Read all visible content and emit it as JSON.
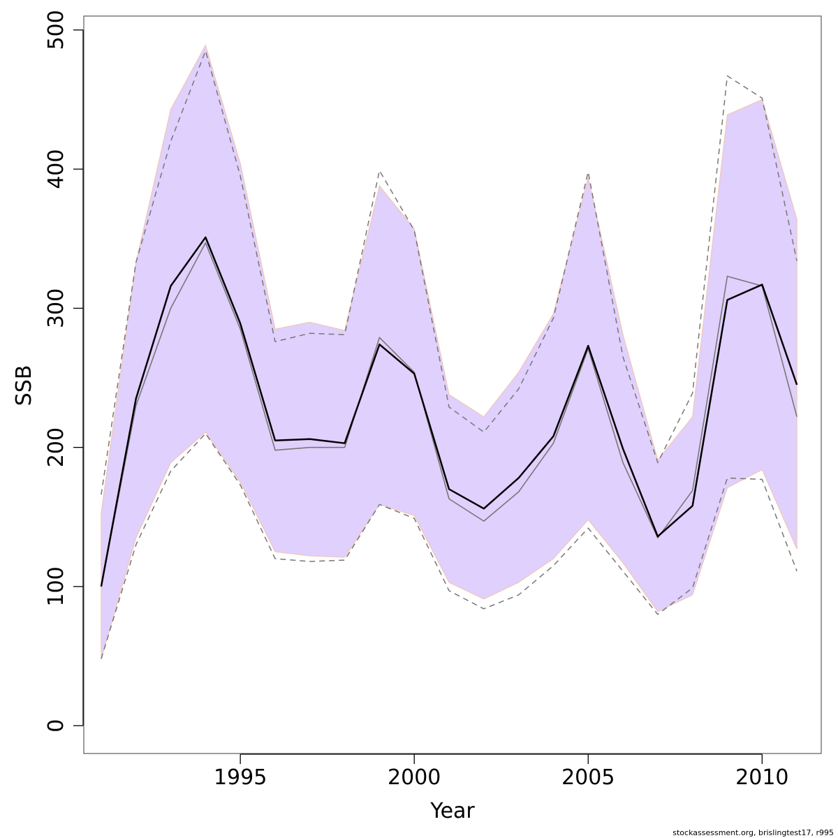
{
  "chart_data": {
    "type": "line",
    "title": "",
    "xlabel": "Year",
    "ylabel": "SSB",
    "xlim": [
      1990.5,
      2011.7
    ],
    "ylim": [
      -20,
      510
    ],
    "x_ticks": [
      1995,
      2000,
      2005,
      2010
    ],
    "y_ticks": [
      0,
      100,
      200,
      300,
      400,
      500
    ],
    "grid": false,
    "legend": "none",
    "colors": {
      "band": "#e0d0fd",
      "band_edge": "#f2c6b4",
      "main": "#000000",
      "secondary": "#777777",
      "dashed": "#777777"
    },
    "x": [
      1991,
      1992,
      1993,
      1994,
      1995,
      1996,
      1997,
      1998,
      1999,
      2000,
      2001,
      2002,
      2003,
      2004,
      2005,
      2006,
      2007,
      2008,
      2009,
      2010,
      2011
    ],
    "band_upper": [
      153,
      333,
      443,
      489,
      404,
      285,
      290,
      284,
      388,
      357,
      238,
      222,
      254,
      296,
      394,
      281,
      191,
      222,
      439,
      450,
      364
    ],
    "band_lower": [
      48,
      135,
      189,
      211,
      175,
      125,
      122,
      121,
      159,
      151,
      103,
      91,
      103,
      120,
      148,
      117,
      82,
      94,
      171,
      184,
      127
    ],
    "series": [
      {
        "values": [
          100,
          235,
          316,
          351,
          289,
          205,
          206,
          203,
          274,
          253,
          170,
          156,
          178,
          208,
          273,
          199,
          136,
          158,
          306,
          317,
          245
        ]
      },
      {
        "values": [
          100,
          230,
          300,
          347,
          285,
          198,
          200,
          200,
          279,
          254,
          163,
          147,
          168,
          203,
          271,
          189,
          135,
          169,
          323,
          316,
          222
        ]
      },
      {
        "values": [
          166,
          333,
          420,
          485,
          395,
          276,
          282,
          281,
          399,
          356,
          229,
          211,
          242,
          293,
          398,
          265,
          189,
          239,
          467,
          451,
          334
        ]
      },
      {
        "values": [
          48,
          130,
          183,
          210,
          173,
          120,
          118,
          119,
          159,
          149,
          97,
          84,
          94,
          115,
          142,
          111,
          80,
          99,
          178,
          177,
          111
        ]
      }
    ]
  },
  "footer": "stockassessment.org, brislingtest17, r995"
}
